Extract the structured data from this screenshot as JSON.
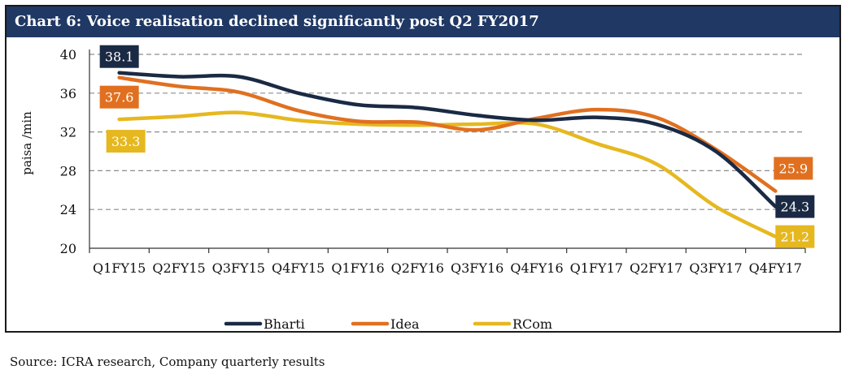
{
  "chart_data": {
    "type": "line",
    "title": "Chart 6: Voice realisation declined significantly post Q2 FY2017",
    "ylabel": "paisa /min",
    "xlabel": "",
    "ylim": [
      20,
      40
    ],
    "yticks": [
      20,
      24,
      28,
      32,
      36,
      40
    ],
    "grid": true,
    "legend_position": "bottom",
    "categories": [
      "Q1FY15",
      "Q2FY15",
      "Q3FY15",
      "Q4FY15",
      "Q1FY16",
      "Q2FY16",
      "Q3FY16",
      "Q4FY16",
      "Q1FY17",
      "Q2FY17",
      "Q3FY17",
      "Q4FY17"
    ],
    "series": [
      {
        "name": "Bharti",
        "color": "#1a2a44",
        "values": [
          38.1,
          37.7,
          37.7,
          36.0,
          34.8,
          34.5,
          33.7,
          33.2,
          33.5,
          32.8,
          30.0,
          24.3
        ],
        "labels": [
          {
            "index": 0,
            "text": "38.1"
          },
          {
            "index": 11,
            "text": "24.3"
          }
        ]
      },
      {
        "name": "Idea",
        "color": "#e07020",
        "values": [
          37.6,
          36.7,
          36.1,
          34.2,
          33.1,
          33.0,
          32.2,
          33.4,
          34.3,
          33.5,
          30.2,
          25.9
        ],
        "labels": [
          {
            "index": 0,
            "text": "37.6"
          },
          {
            "index": 11,
            "text": "25.9"
          }
        ]
      },
      {
        "name": "RCom",
        "color": "#e6b820",
        "values": [
          33.3,
          33.6,
          34.0,
          33.2,
          32.8,
          32.7,
          32.8,
          32.8,
          30.8,
          28.7,
          24.3,
          21.2
        ],
        "labels": [
          {
            "index": 0,
            "text": "33.3"
          },
          {
            "index": 11,
            "text": "21.2"
          }
        ]
      }
    ]
  },
  "source": "Source: ICRA research,  Company quarterly results"
}
